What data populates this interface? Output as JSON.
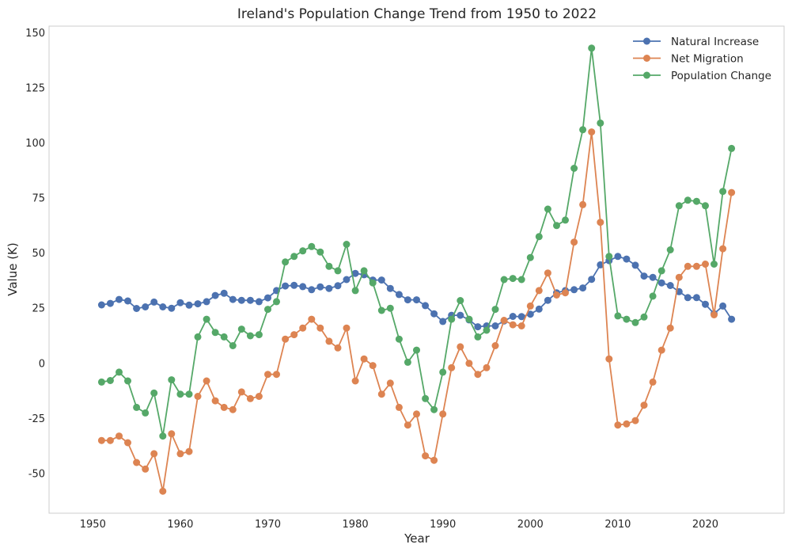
{
  "chart_data": {
    "type": "line",
    "title": "Ireland's Population Change Trend from 1950 to 2022",
    "xlabel": "Year",
    "ylabel": "Value (K)",
    "xlim": [
      1945,
      2029
    ],
    "ylim": [
      -68,
      153
    ],
    "xticks": [
      1950,
      1960,
      1970,
      1980,
      1990,
      2000,
      2010,
      2020
    ],
    "yticks": [
      -50,
      -25,
      0,
      25,
      50,
      75,
      100,
      125,
      150
    ],
    "grid": false,
    "legend_position": "top-right",
    "x": [
      1951,
      1952,
      1953,
      1954,
      1955,
      1956,
      1957,
      1958,
      1959,
      1960,
      1961,
      1962,
      1963,
      1964,
      1965,
      1966,
      1967,
      1968,
      1969,
      1970,
      1971,
      1972,
      1973,
      1974,
      1975,
      1976,
      1977,
      1978,
      1979,
      1980,
      1981,
      1982,
      1983,
      1984,
      1985,
      1986,
      1987,
      1988,
      1989,
      1990,
      1991,
      1992,
      1993,
      1994,
      1995,
      1996,
      1997,
      1998,
      1999,
      2000,
      2001,
      2002,
      2003,
      2004,
      2005,
      2006,
      2007,
      2008,
      2009,
      2010,
      2011,
      2012,
      2013,
      2014,
      2015,
      2016,
      2017,
      2018,
      2019,
      2020,
      2021,
      2022,
      2023
    ],
    "series": [
      {
        "name": "Natural Increase",
        "color": "#4c72b0",
        "values": [
          26.5,
          27.2,
          29.0,
          28.3,
          24.9,
          25.6,
          27.8,
          25.6,
          25.0,
          27.5,
          26.4,
          27.0,
          28.0,
          30.8,
          31.8,
          29.0,
          28.6,
          28.6,
          28.0,
          29.7,
          33.0,
          35.1,
          35.4,
          34.8,
          33.4,
          34.7,
          34.0,
          35.2,
          38.0,
          40.8,
          40.2,
          37.8,
          37.8,
          34.0,
          31.2,
          28.8,
          28.8,
          26.2,
          22.5,
          19.0,
          21.8,
          21.8,
          19.7,
          16.6,
          17.0,
          17.0,
          19.2,
          21.3,
          21.2,
          22.3,
          24.6,
          28.6,
          32.0,
          33.0,
          33.4,
          34.2,
          38.1,
          44.7,
          46.6,
          48.5,
          47.3,
          44.5,
          39.6,
          39.0,
          36.5,
          35.3,
          32.5,
          29.8,
          29.8,
          26.8,
          22.5,
          26.0,
          20.0
        ]
      },
      {
        "name": "Net Migration",
        "color": "#dd8452",
        "values": [
          -35.0,
          -35.0,
          -33.0,
          -36.0,
          -45.0,
          -48.0,
          -41.0,
          -58.0,
          -32.0,
          -41.0,
          -40.0,
          -15.0,
          -8.0,
          -17.0,
          -20.0,
          -21.0,
          -13.0,
          -16.0,
          -15.0,
          -5.0,
          -5.0,
          11.0,
          13.0,
          16.0,
          20.0,
          16.0,
          10.0,
          7.0,
          16.0,
          -8.0,
          2.0,
          -1.0,
          -14.0,
          -9.0,
          -20.0,
          -28.0,
          -23.0,
          -42.0,
          -44.0,
          -23.0,
          -2.0,
          7.5,
          0.0,
          -5.0,
          -2.0,
          8.0,
          19.5,
          17.5,
          17.0,
          26.0,
          33.0,
          41.0,
          31.0,
          32.0,
          55.0,
          72.0,
          105.0,
          64.0,
          2.0,
          -28.0,
          -27.5,
          -26.0,
          -19.0,
          -8.5,
          6.0,
          16.0,
          39.0,
          44.0,
          44.0,
          45.0,
          22.0,
          52.0,
          77.5
        ]
      },
      {
        "name": "Population Change",
        "color": "#55a868",
        "values": [
          -8.5,
          -7.8,
          -4.0,
          -8.0,
          -20.0,
          -22.5,
          -13.5,
          -33.0,
          -7.5,
          -14.0,
          -14.0,
          12.0,
          20.0,
          14.0,
          12.0,
          8.0,
          15.5,
          12.5,
          13.0,
          24.5,
          28.0,
          46.0,
          48.5,
          51.0,
          53.0,
          50.5,
          44.0,
          42.0,
          54.0,
          33.0,
          42.0,
          36.5,
          24.0,
          25.0,
          11.0,
          0.5,
          6.0,
          -16.0,
          -21.0,
          -4.0,
          20.0,
          28.5,
          20.0,
          12.0,
          15.0,
          24.5,
          38.0,
          38.5,
          38.0,
          48.0,
          57.5,
          70.0,
          62.5,
          65.0,
          88.5,
          106.0,
          143.0,
          109.0,
          48.5,
          21.5,
          20.0,
          18.5,
          21.0,
          30.5,
          42.0,
          51.5,
          71.5,
          74.0,
          73.5,
          71.5,
          45.0,
          78.0,
          97.5
        ]
      }
    ]
  }
}
